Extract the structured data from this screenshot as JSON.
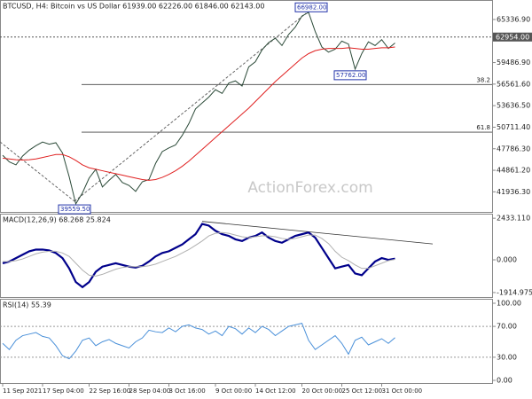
{
  "chart_data": [
    {
      "type": "line",
      "title": "BTCUSD, H4:  Bitcoin vs US Dollar  61939.00 62226.00 61846.00 62143.00",
      "watermark": "ActionForex.com",
      "categories": [
        "11 Sep 2021",
        null,
        null,
        null,
        null,
        null,
        "17 Sep 04:00",
        null,
        null,
        null,
        null,
        null,
        null,
        "22 Sep 16:00",
        null,
        null,
        null,
        null,
        null,
        "28 Sep 04:00",
        null,
        null,
        null,
        null,
        null,
        "3 Oct 16:00",
        null,
        null,
        null,
        null,
        null,
        null,
        "9 Oct 00:00",
        null,
        null,
        null,
        null,
        null,
        "14 Oct 12:00",
        null,
        null,
        null,
        null,
        null,
        null,
        "20 Oct 00:00",
        null,
        null,
        null,
        null,
        null,
        "25 Oct 12:00",
        null,
        null,
        null,
        null,
        null,
        "31 Oct 00:00",
        null,
        null
      ],
      "series": [
        {
          "color": "#2b4a38",
          "values": [
            46900,
            46000,
            45600,
            46800,
            47600,
            48200,
            48700,
            48400,
            48600,
            47200,
            44000,
            40300,
            41800,
            43800,
            45000,
            42600,
            43500,
            44300,
            43200,
            42800,
            42000,
            43300,
            43600,
            45800,
            47400,
            47900,
            48300,
            49600,
            51200,
            53200,
            54000,
            54800,
            55800,
            55300,
            56700,
            57000,
            56300,
            58900,
            59600,
            61200,
            62200,
            62800,
            61800,
            63300,
            64300,
            65800,
            66300,
            63700,
            61600,
            60900,
            61300,
            62400,
            62000,
            58600,
            60700,
            62300,
            61800,
            62600,
            61400,
            62143
          ]
        },
        {
          "color": "#e02020",
          "values": [
            46500,
            46400,
            46300,
            46250,
            46300,
            46400,
            46600,
            46800,
            47000,
            47000,
            46700,
            46200,
            45600,
            45200,
            45000,
            44800,
            44600,
            44400,
            44200,
            44000,
            43800,
            43600,
            43500,
            43600,
            43900,
            44300,
            44800,
            45400,
            46100,
            46900,
            47700,
            48500,
            49300,
            50100,
            50900,
            51700,
            52500,
            53300,
            54200,
            55100,
            56000,
            56900,
            57700,
            58500,
            59300,
            60100,
            60700,
            61100,
            61300,
            61400,
            61400,
            61400,
            61500,
            61400,
            61300,
            61300,
            61400,
            61500,
            61500,
            61600
          ]
        }
      ],
      "ylim": [
        39330,
        67740
      ],
      "yticks": [
        {
          "value": 65336.9,
          "label": "65336.90"
        },
        {
          "value": 59486.9,
          "label": "59486.90"
        },
        {
          "value": 56561.6,
          "label": "56561.60"
        },
        {
          "value": 53636.5,
          "label": "53636.50"
        },
        {
          "value": 50711.4,
          "label": "50711.40"
        },
        {
          "value": 47786.3,
          "label": "47786.30"
        },
        {
          "value": 44861.2,
          "label": "44861.20"
        },
        {
          "value": 41936.3,
          "label": "41936.30"
        }
      ],
      "current_price": {
        "value": 62954,
        "label": "62954.00"
      },
      "annotations": [
        {
          "value": 66982,
          "label": "66982.00"
        },
        {
          "value": 39559.5,
          "label": "39559.50"
        },
        {
          "value": 57762,
          "label": "57762.00"
        }
      ],
      "fib_levels": [
        {
          "ratio": 38.2,
          "price": 56507
        },
        {
          "ratio": 61.8,
          "price": 50035
        }
      ]
    },
    {
      "type": "line",
      "title": "MACD(12,26,9) 68.268 25.824",
      "series": [
        {
          "color": "#00008b",
          "values": [
            -200,
            -100,
            100,
            300,
            500,
            600,
            600,
            550,
            400,
            100,
            -500,
            -1300,
            -1600,
            -1300,
            -700,
            -400,
            -300,
            -200,
            -300,
            -400,
            -450,
            -350,
            -100,
            200,
            400,
            500,
            700,
            900,
            1200,
            1500,
            2100,
            2000,
            1700,
            1500,
            1400,
            1200,
            1100,
            1300,
            1400,
            1600,
            1300,
            1100,
            1000,
            1200,
            1400,
            1500,
            1600,
            1300,
            700,
            100,
            -500,
            -400,
            -300,
            -800,
            -900,
            -500,
            -100,
            100,
            0,
            68.268
          ]
        },
        {
          "color": "#b0b0b0",
          "values": [
            -100,
            -100,
            -50,
            50,
            200,
            350,
            450,
            500,
            500,
            400,
            200,
            -200,
            -600,
            -900,
            -950,
            -850,
            -700,
            -550,
            -450,
            -400,
            -400,
            -400,
            -350,
            -250,
            -100,
            50,
            200,
            400,
            600,
            850,
            1100,
            1400,
            1550,
            1600,
            1550,
            1450,
            1350,
            1300,
            1350,
            1400,
            1400,
            1350,
            1250,
            1200,
            1250,
            1350,
            1450,
            1450,
            1250,
            950,
            500,
            150,
            -50,
            -300,
            -500,
            -500,
            -350,
            -200,
            -50,
            25.824
          ]
        }
      ],
      "ylim": [
        -2230,
        2700
      ],
      "yticks": [
        {
          "value": 2433.11,
          "label": "2433.110"
        },
        {
          "value": 0,
          "label": "0.000"
        },
        {
          "value": -1914.975,
          "label": "-1914.975"
        }
      ],
      "trendline": [
        2250,
        930
      ]
    },
    {
      "type": "line",
      "title": "RSI(14) 55.39",
      "series": [
        {
          "color": "#4a90d9",
          "values": [
            48,
            40,
            52,
            58,
            60,
            62,
            57,
            55,
            45,
            32,
            28,
            38,
            52,
            55,
            45,
            50,
            53,
            48,
            45,
            42,
            50,
            55,
            65,
            63,
            62,
            68,
            63,
            70,
            72,
            68,
            66,
            60,
            64,
            58,
            70,
            67,
            60,
            68,
            62,
            70,
            66,
            58,
            64,
            70,
            72,
            74,
            52,
            40,
            46,
            52,
            58,
            48,
            34,
            52,
            56,
            46,
            50,
            54,
            48,
            55.39
          ]
        }
      ],
      "ylim": [
        0,
        100
      ],
      "yticks": [
        {
          "value": 100,
          "label": "100.00"
        },
        {
          "value": 70,
          "label": "70.00"
        },
        {
          "value": 30,
          "label": "30.00"
        },
        {
          "value": 0,
          "label": "0.00"
        }
      ],
      "levels": [
        70,
        30
      ]
    }
  ]
}
